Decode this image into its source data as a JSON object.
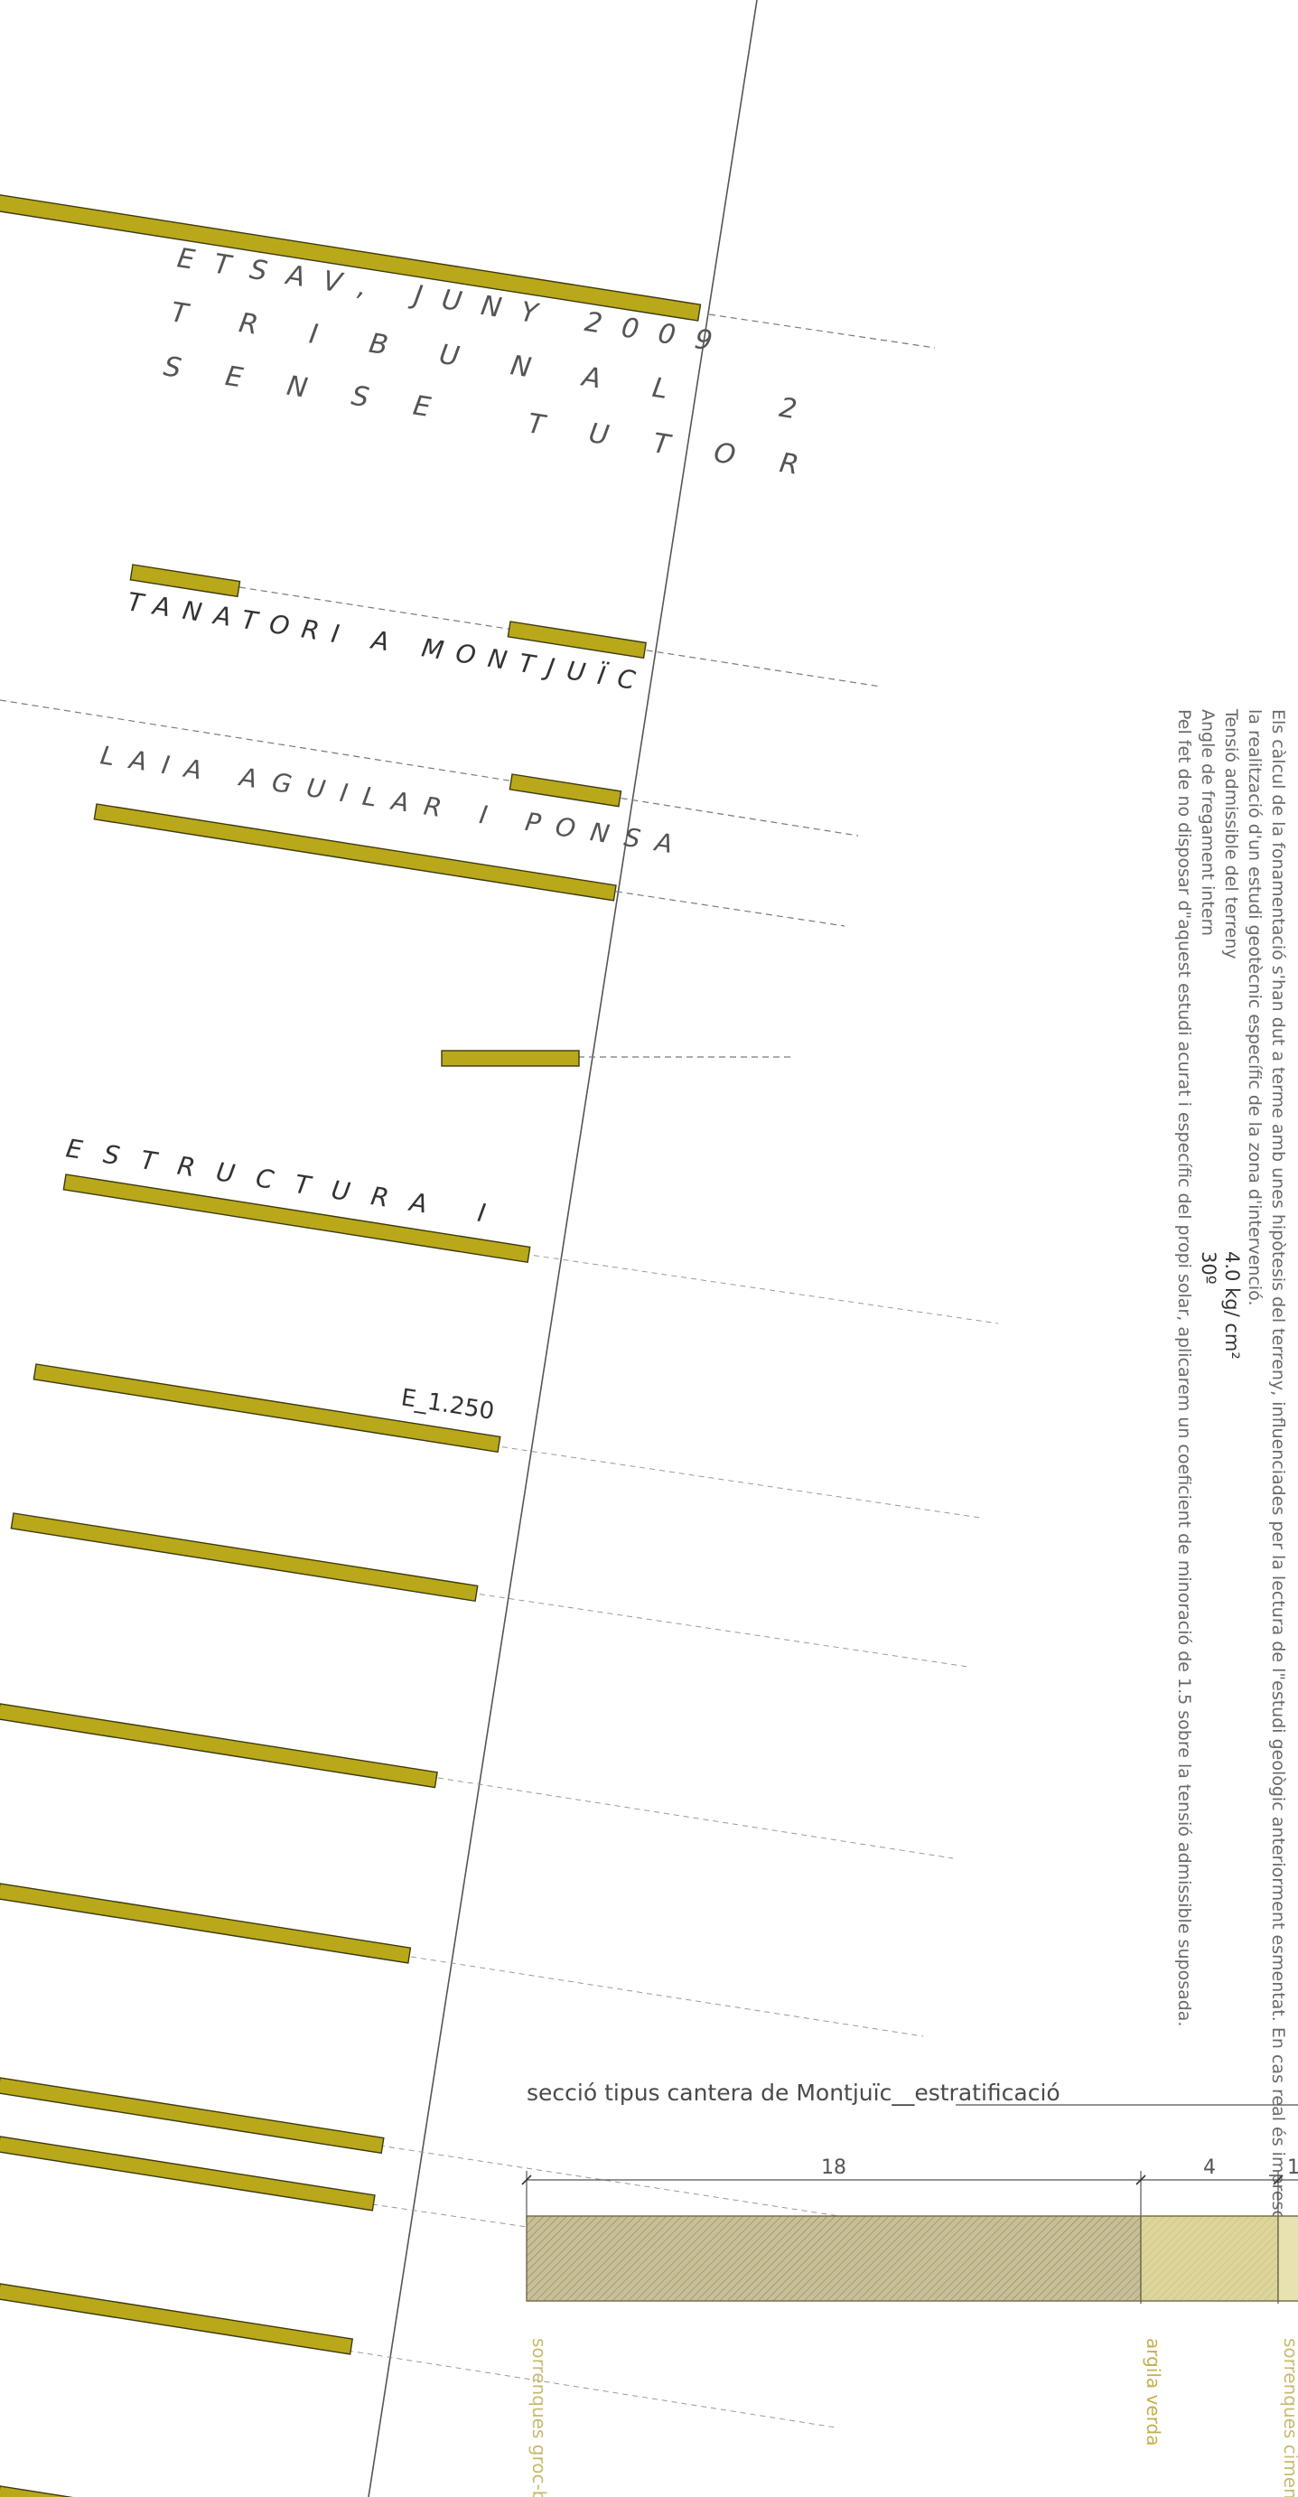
{
  "header": {
    "line1": "ETSAV, JUNY 2009",
    "line2": "TRIBUNAL 2",
    "line3": "SENSE TUTOR"
  },
  "project": {
    "title": "TANATORI A MONTJUÏC",
    "author": "LAIA AGUILAR I PONSA",
    "sheet": "ESTRUCTURA I",
    "scale": "E_1.250"
  },
  "notes": {
    "line1": "Els càlcul de la fonamentació s'han dut a terme amb unes hipòtesis del terreny, influenciades per la lectura de l\"estudi geològic anteriorment esmentat. En cas real és imprescindible",
    "line2": "la realització d'un estudi geotècnic específic de la zona d'intervenció.",
    "line3_label": "Tensió admissible del terreny",
    "line3_value": "4.0 kg/ cm²",
    "line4_label": "Angle de fregament intern",
    "line4_value": "30º",
    "line5": "Pel fet de no disposar d\"aquest estudi acurat i específic del propi solar, aplicarem un coeficient de minoració de 1.5 sobre la tensió admissible suposada."
  },
  "section": {
    "title": "secció tipus cantera de Montjuïc__estratificació",
    "dims": [
      "18",
      "4",
      "1"
    ],
    "layers": [
      {
        "label": "sorrenques groc-blanc",
        "color": "#c8bf96",
        "hatch": "#8f8660",
        "text_color": "#c7bb70"
      },
      {
        "label": "argila verda",
        "color": "#ddd59a",
        "hatch": "#bfb572",
        "text_color": "#c4b04c"
      },
      {
        "label": "sorrenques ciment arc",
        "color": "#e8e2b0",
        "hatch": "#cdc48a",
        "text_color": "#c7bb70"
      }
    ]
  },
  "colors": {
    "slab": "#b9a81a",
    "slab_outline": "#3d3a10",
    "axis_line": "#555555",
    "dashed_lines": "#7a7a7a"
  }
}
